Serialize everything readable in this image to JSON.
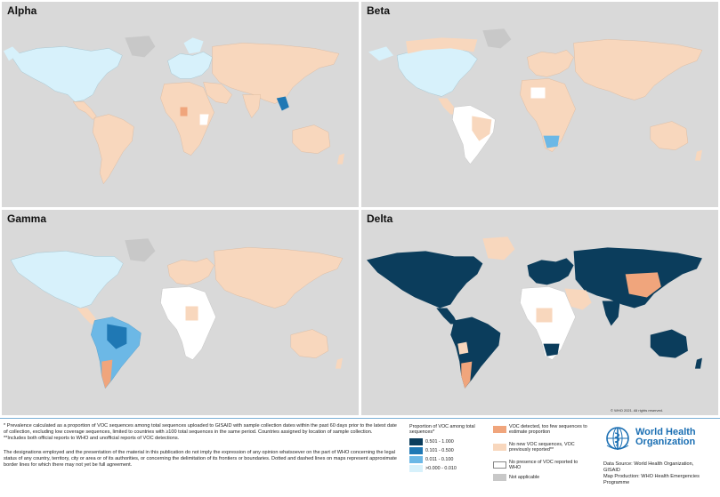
{
  "panels": {
    "alpha": {
      "title": "Alpha"
    },
    "beta": {
      "title": "Beta"
    },
    "gamma": {
      "title": "Gamma"
    },
    "delta": {
      "title": "Delta",
      "copyright": "© WHO 2021. All rights reserved."
    }
  },
  "footnotes": {
    "note1": "* Prevalence calculated as a proportion of VOC sequences among total sequences uploaded to GISAID with sample collection dates within the past 60 days prior to the latest date of collection, excluding low coverage sequences, limited to countries with ≥100 total sequences in the same period. Countries assigned by location of sample collection.",
    "note2": "**Includes both official reports to WHO and unofficial reports of VOC detections.",
    "disclaimer": "The designations employed and the presentation of the material in this publication do not imply the expression of any opinion whatsoever on the part of WHO concerning the legal status of any country, territory, city or area or of its authorities, or concerning the delimitation of its frontiers or boundaries. Dotted and dashed lines on maps represent approximate border lines for which there may not yet be full agreement."
  },
  "legend": {
    "title": "Proportion of VOC among total sequences*",
    "bins": [
      {
        "label": "0.501 - 1.000",
        "color": "#0b3d5c"
      },
      {
        "label": "0.101 - 0.500",
        "color": "#1f78b4"
      },
      {
        "label": "0.011 - 0.100",
        "color": "#6cb8e6"
      },
      {
        "label": ">0.000 - 0.010",
        "color": "#d7f1fb"
      }
    ],
    "categories": [
      {
        "label": "VOC detected, too few sequences to estimate proportion",
        "color": "#f0a57c"
      },
      {
        "label": "No new VOC sequences, VOC previously reported**",
        "color": "#f8d7bd"
      },
      {
        "label": "No presence of VOC reported to WHO",
        "color": "#ffffff"
      },
      {
        "label": "Not applicable",
        "color": "#c8c8c8"
      }
    ]
  },
  "who": {
    "name": "World Health Organization",
    "data_source": "Data Source: World Health Organization, GISAID",
    "map_production": "Map Production: WHO Health Emergencies Programme"
  },
  "colors": {
    "sea": "#d9d9d9",
    "dark": "#0b3d5c",
    "mid": "#1f78b4",
    "light": "#6cb8e6",
    "pale": "#d7f1fb",
    "orange": "#f0a57c",
    "peach": "#f8d7bd",
    "white": "#ffffff",
    "na": "#c8c8c8"
  }
}
